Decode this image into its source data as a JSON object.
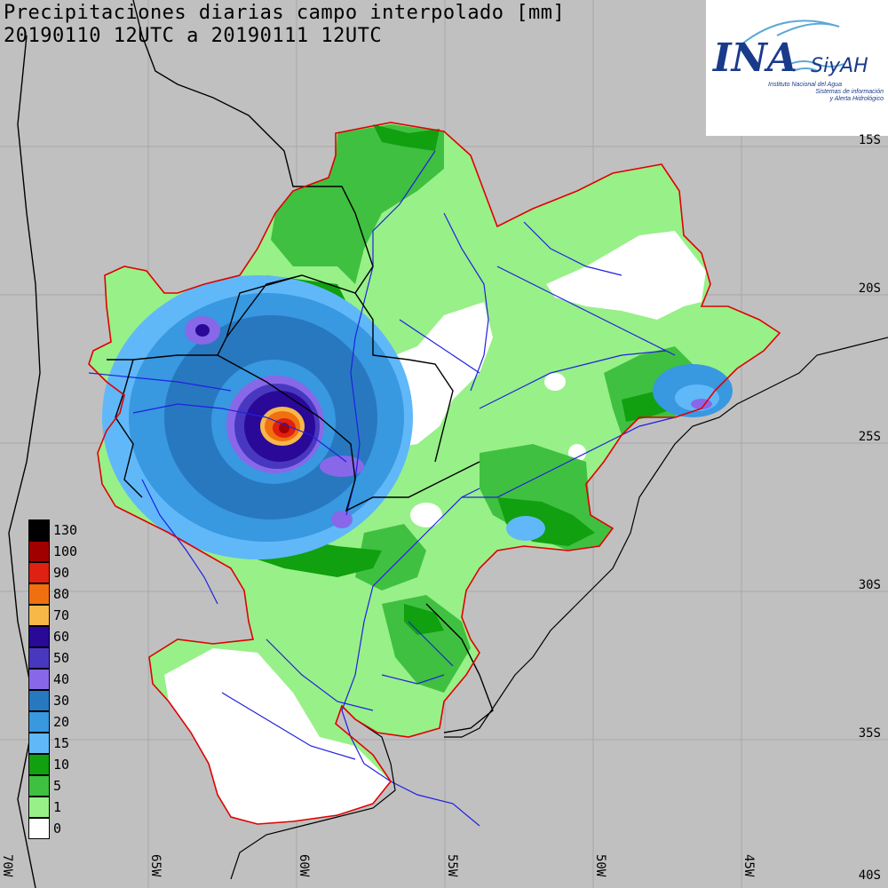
{
  "title": {
    "line1": "Precipitaciones diarias campo interpolado [mm]",
    "line2": "20190110 12UTC a 20190111 12UTC"
  },
  "logo": {
    "ina": "INA",
    "siyah": "SiyAH",
    "sub1": "Instituto Nacional del Agua",
    "sub2": "Sistemas de información",
    "sub3": "y Alerta Hidrológico"
  },
  "lat_labels": [
    "15S",
    "20S",
    "25S",
    "30S",
    "35S",
    "40S"
  ],
  "lon_labels": [
    "70W",
    "65W",
    "60W",
    "55W",
    "50W",
    "45W"
  ],
  "legend": [
    {
      "label": "130",
      "color": "#000000"
    },
    {
      "label": "100",
      "color": "#a00000"
    },
    {
      "label": "90",
      "color": "#e02010"
    },
    {
      "label": "80",
      "color": "#f07010"
    },
    {
      "label": "70",
      "color": "#f8b848"
    },
    {
      "label": "60",
      "color": "#2a0898"
    },
    {
      "label": "50",
      "color": "#4838c0"
    },
    {
      "label": "40",
      "color": "#8868e8"
    },
    {
      "label": "30",
      "color": "#2878c0"
    },
    {
      "label": "20",
      "color": "#3898e0"
    },
    {
      "label": "15",
      "color": "#60b8f8"
    },
    {
      "label": "10",
      "color": "#10a010"
    },
    {
      "label": "5",
      "color": "#40c040"
    },
    {
      "label": "1",
      "color": "#98f088"
    },
    {
      "label": "0",
      "color": "#ffffff"
    }
  ],
  "colors": {
    "background": "#c0c0c0",
    "grid": "#a8a8a8",
    "basin_outline": "#e00000",
    "borders": "#000000",
    "rivers": "#2020e0"
  }
}
